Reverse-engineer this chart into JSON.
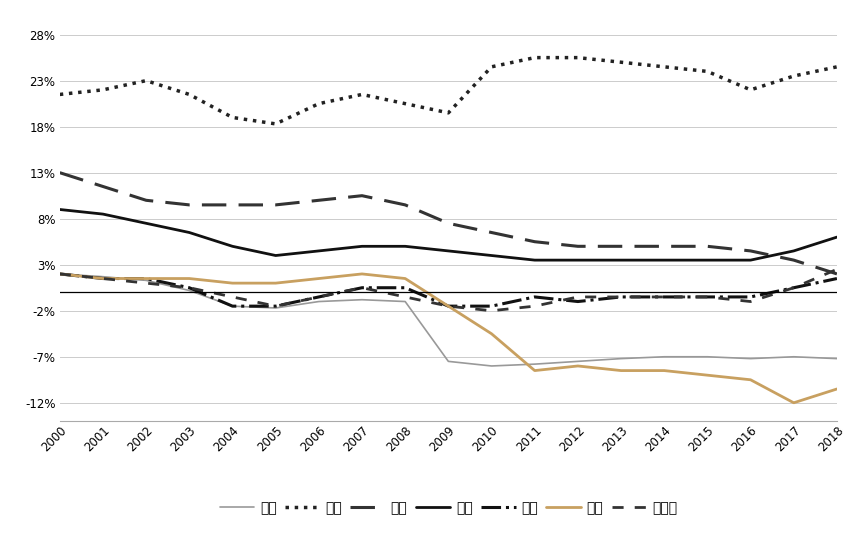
{
  "years": [
    2000,
    2001,
    2002,
    2003,
    2004,
    2005,
    2006,
    2007,
    2008,
    2009,
    2010,
    2011,
    2012,
    2013,
    2014,
    2015,
    2016,
    2017,
    2018
  ],
  "series": {
    "美国": [
      2.0,
      1.7,
      1.3,
      0.2,
      -1.5,
      -1.7,
      -1.0,
      -0.8,
      -1.0,
      -7.5,
      -8.0,
      -7.8,
      -7.5,
      -7.2,
      -7.0,
      -7.0,
      -7.2,
      -7.0,
      -7.2
    ],
    "中国": [
      21.5,
      22.0,
      23.0,
      21.5,
      19.0,
      18.3,
      20.5,
      21.5,
      20.5,
      19.5,
      24.5,
      25.5,
      25.5,
      25.0,
      24.5,
      24.0,
      22.0,
      23.5,
      24.5
    ],
    "日本": [
      13.0,
      11.5,
      10.0,
      9.5,
      9.5,
      9.5,
      10.0,
      10.5,
      9.5,
      7.5,
      6.5,
      5.5,
      5.0,
      5.0,
      5.0,
      5.0,
      4.5,
      3.5,
      2.0
    ],
    "德国": [
      9.0,
      8.5,
      7.5,
      6.5,
      5.0,
      4.0,
      4.5,
      5.0,
      5.0,
      4.5,
      4.0,
      3.5,
      3.5,
      3.5,
      3.5,
      3.5,
      3.5,
      4.5,
      6.0
    ],
    "法国": [
      2.0,
      1.5,
      1.5,
      0.5,
      -1.5,
      -1.5,
      -0.5,
      0.5,
      0.5,
      -1.5,
      -1.5,
      -0.5,
      -1.0,
      -0.5,
      -0.5,
      -0.5,
      -0.5,
      0.5,
      1.5
    ],
    "英国": [
      2.0,
      1.5,
      1.5,
      1.5,
      1.0,
      1.0,
      1.5,
      2.0,
      1.5,
      -1.5,
      -4.5,
      -8.5,
      -8.0,
      -8.5,
      -8.5,
      -9.0,
      -9.5,
      -12.0,
      -10.5
    ],
    "加拿大": [
      2.0,
      1.5,
      1.0,
      0.5,
      -0.5,
      -1.5,
      -0.5,
      0.5,
      -0.5,
      -1.5,
      -2.0,
      -1.5,
      -0.5,
      -0.5,
      -0.5,
      -0.5,
      -1.0,
      0.5,
      2.5
    ]
  },
  "line_configs": {
    "美国": {
      "color": "#999999",
      "linestyle": "-",
      "linewidth": 1.2,
      "dotted": false
    },
    "中国": {
      "color": "#222222",
      "linestyle": ":",
      "linewidth": 2.2,
      "dotted": true
    },
    "日本": {
      "color": "#333333",
      "linestyle": "--",
      "linewidth": 2.2,
      "dotted": false,
      "dashes": [
        8,
        4
      ]
    },
    "德国": {
      "color": "#111111",
      "linestyle": "-",
      "linewidth": 2.0,
      "dotted": false
    },
    "法国": {
      "color": "#111111",
      "linestyle": "-.",
      "linewidth": 2.2,
      "dotted": false
    },
    "英国": {
      "color": "#C8A060",
      "linestyle": "-",
      "linewidth": 2.0,
      "dotted": false
    },
    "加拿大": {
      "color": "#333333",
      "linestyle": "--",
      "linewidth": 2.0,
      "dotted": false,
      "dashes": [
        4,
        4
      ]
    }
  },
  "legend_order": [
    "美国",
    "中国",
    "日本",
    "德国",
    "法国",
    "英国",
    "加拿大"
  ],
  "ylim": [
    -14,
    30
  ],
  "yticks": [
    -12,
    -7,
    -2,
    3,
    8,
    13,
    18,
    23,
    28
  ],
  "ytick_labels": [
    "-12%",
    "-7%",
    "-2%",
    "3%",
    "8%",
    "13%",
    "18%",
    "23%",
    "28%"
  ],
  "grid_color": "#cccccc",
  "spine_color": "#aaaaaa"
}
